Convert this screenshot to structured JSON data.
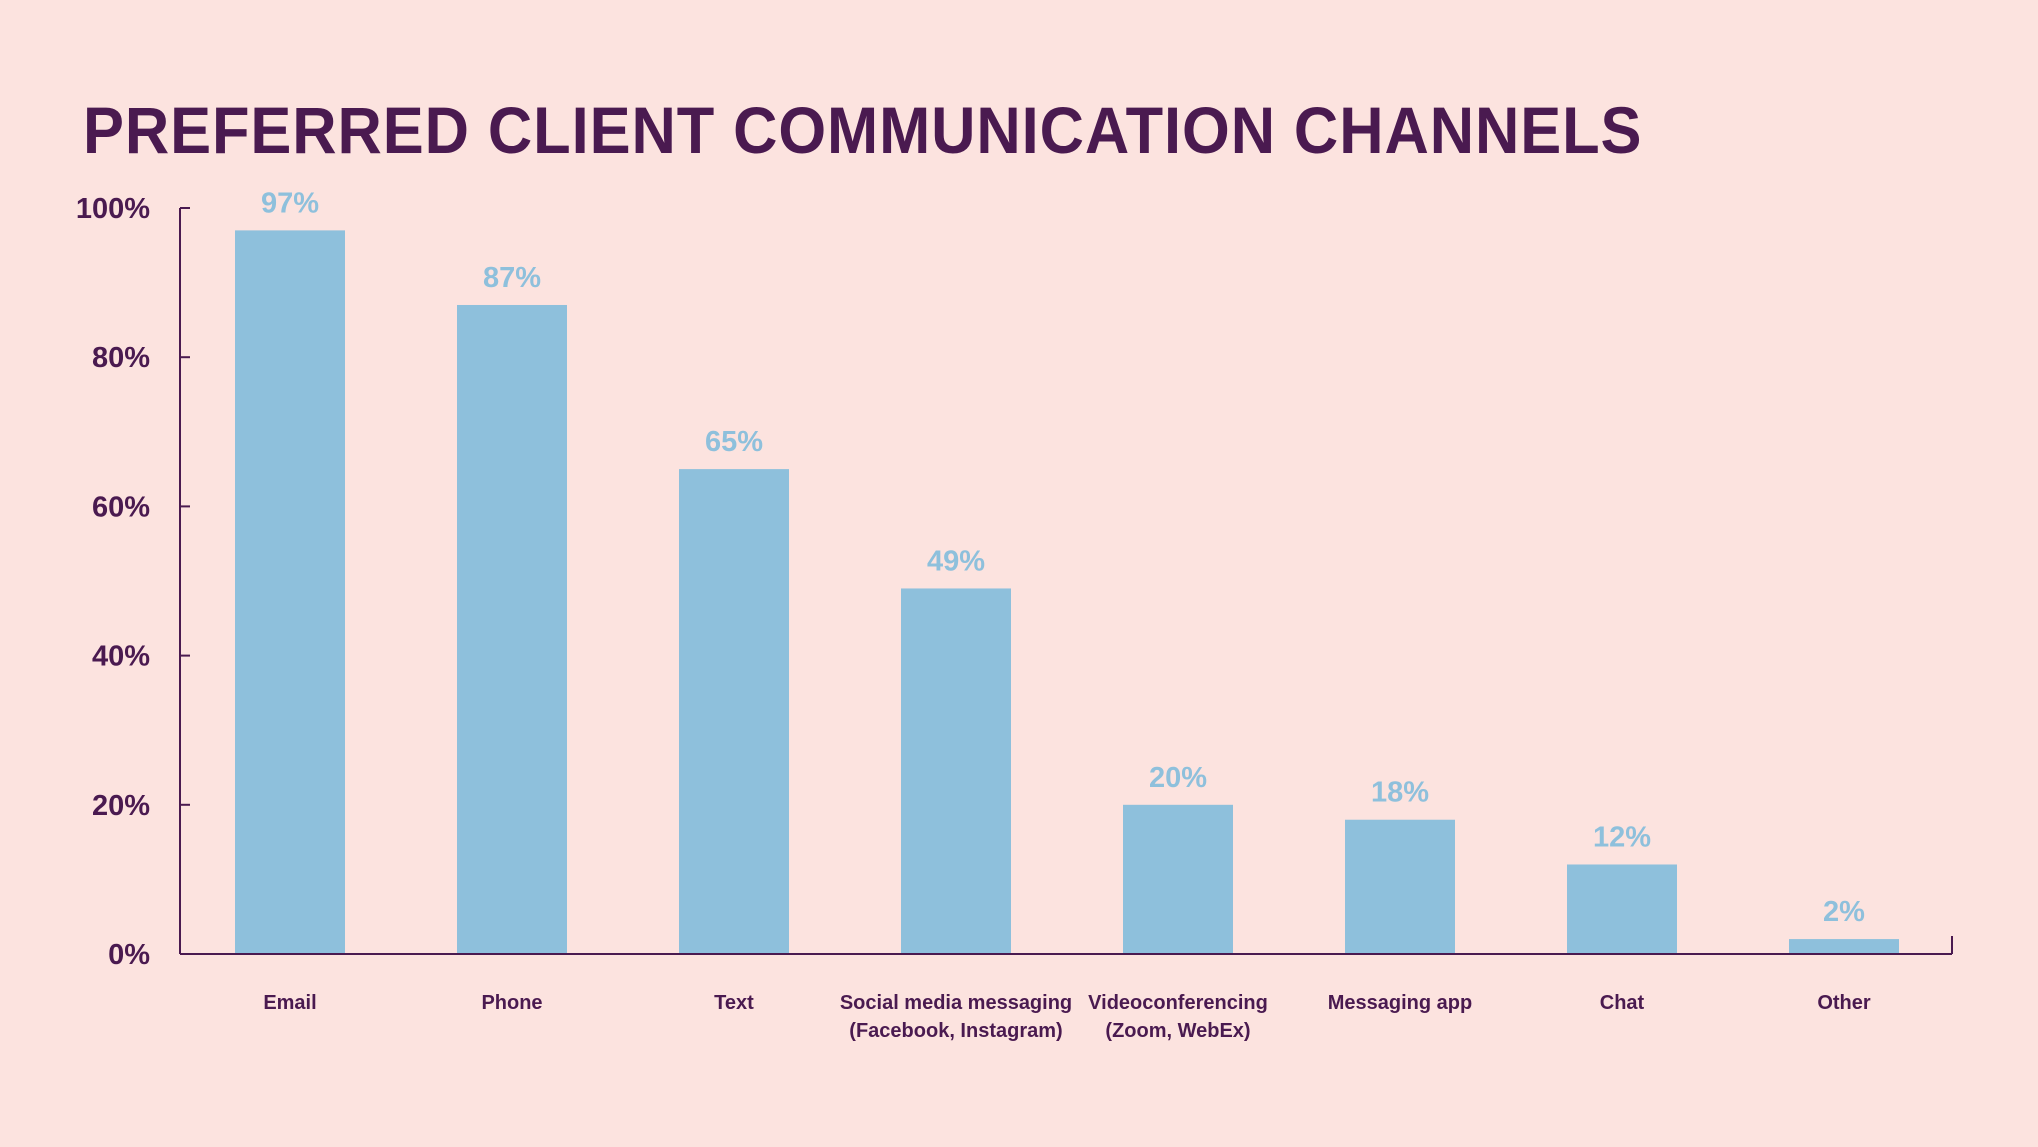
{
  "chart_data": {
    "type": "bar",
    "title": "PREFERRED CLIENT COMMUNICATION CHANNELS",
    "xlabel": "",
    "ylabel": "",
    "ylim": [
      0,
      100
    ],
    "yticks": [
      0,
      20,
      40,
      60,
      80,
      100
    ],
    "ytick_labels": [
      "0%",
      "20%",
      "40%",
      "60%",
      "80%",
      "100%"
    ],
    "grid": false,
    "legend": "none",
    "categories": [
      [
        "Email"
      ],
      [
        "Phone"
      ],
      [
        "Text"
      ],
      [
        "Social media messaging",
        "(Facebook, Instagram)"
      ],
      [
        "Videoconferencing",
        "(Zoom, WebEx)"
      ],
      [
        "Messaging app"
      ],
      [
        "Chat"
      ],
      [
        "Other"
      ]
    ],
    "values": [
      97,
      87,
      65,
      49,
      20,
      18,
      12,
      2
    ],
    "data_labels": [
      "97%",
      "87%",
      "65%",
      "49%",
      "20%",
      "18%",
      "12%",
      "2%"
    ],
    "colors": {
      "bar": "#8ec0dc",
      "axis": "#4a1a50",
      "text": "#4a1a50",
      "data_label": "#8ec0dc",
      "background": "#fce3df"
    }
  }
}
